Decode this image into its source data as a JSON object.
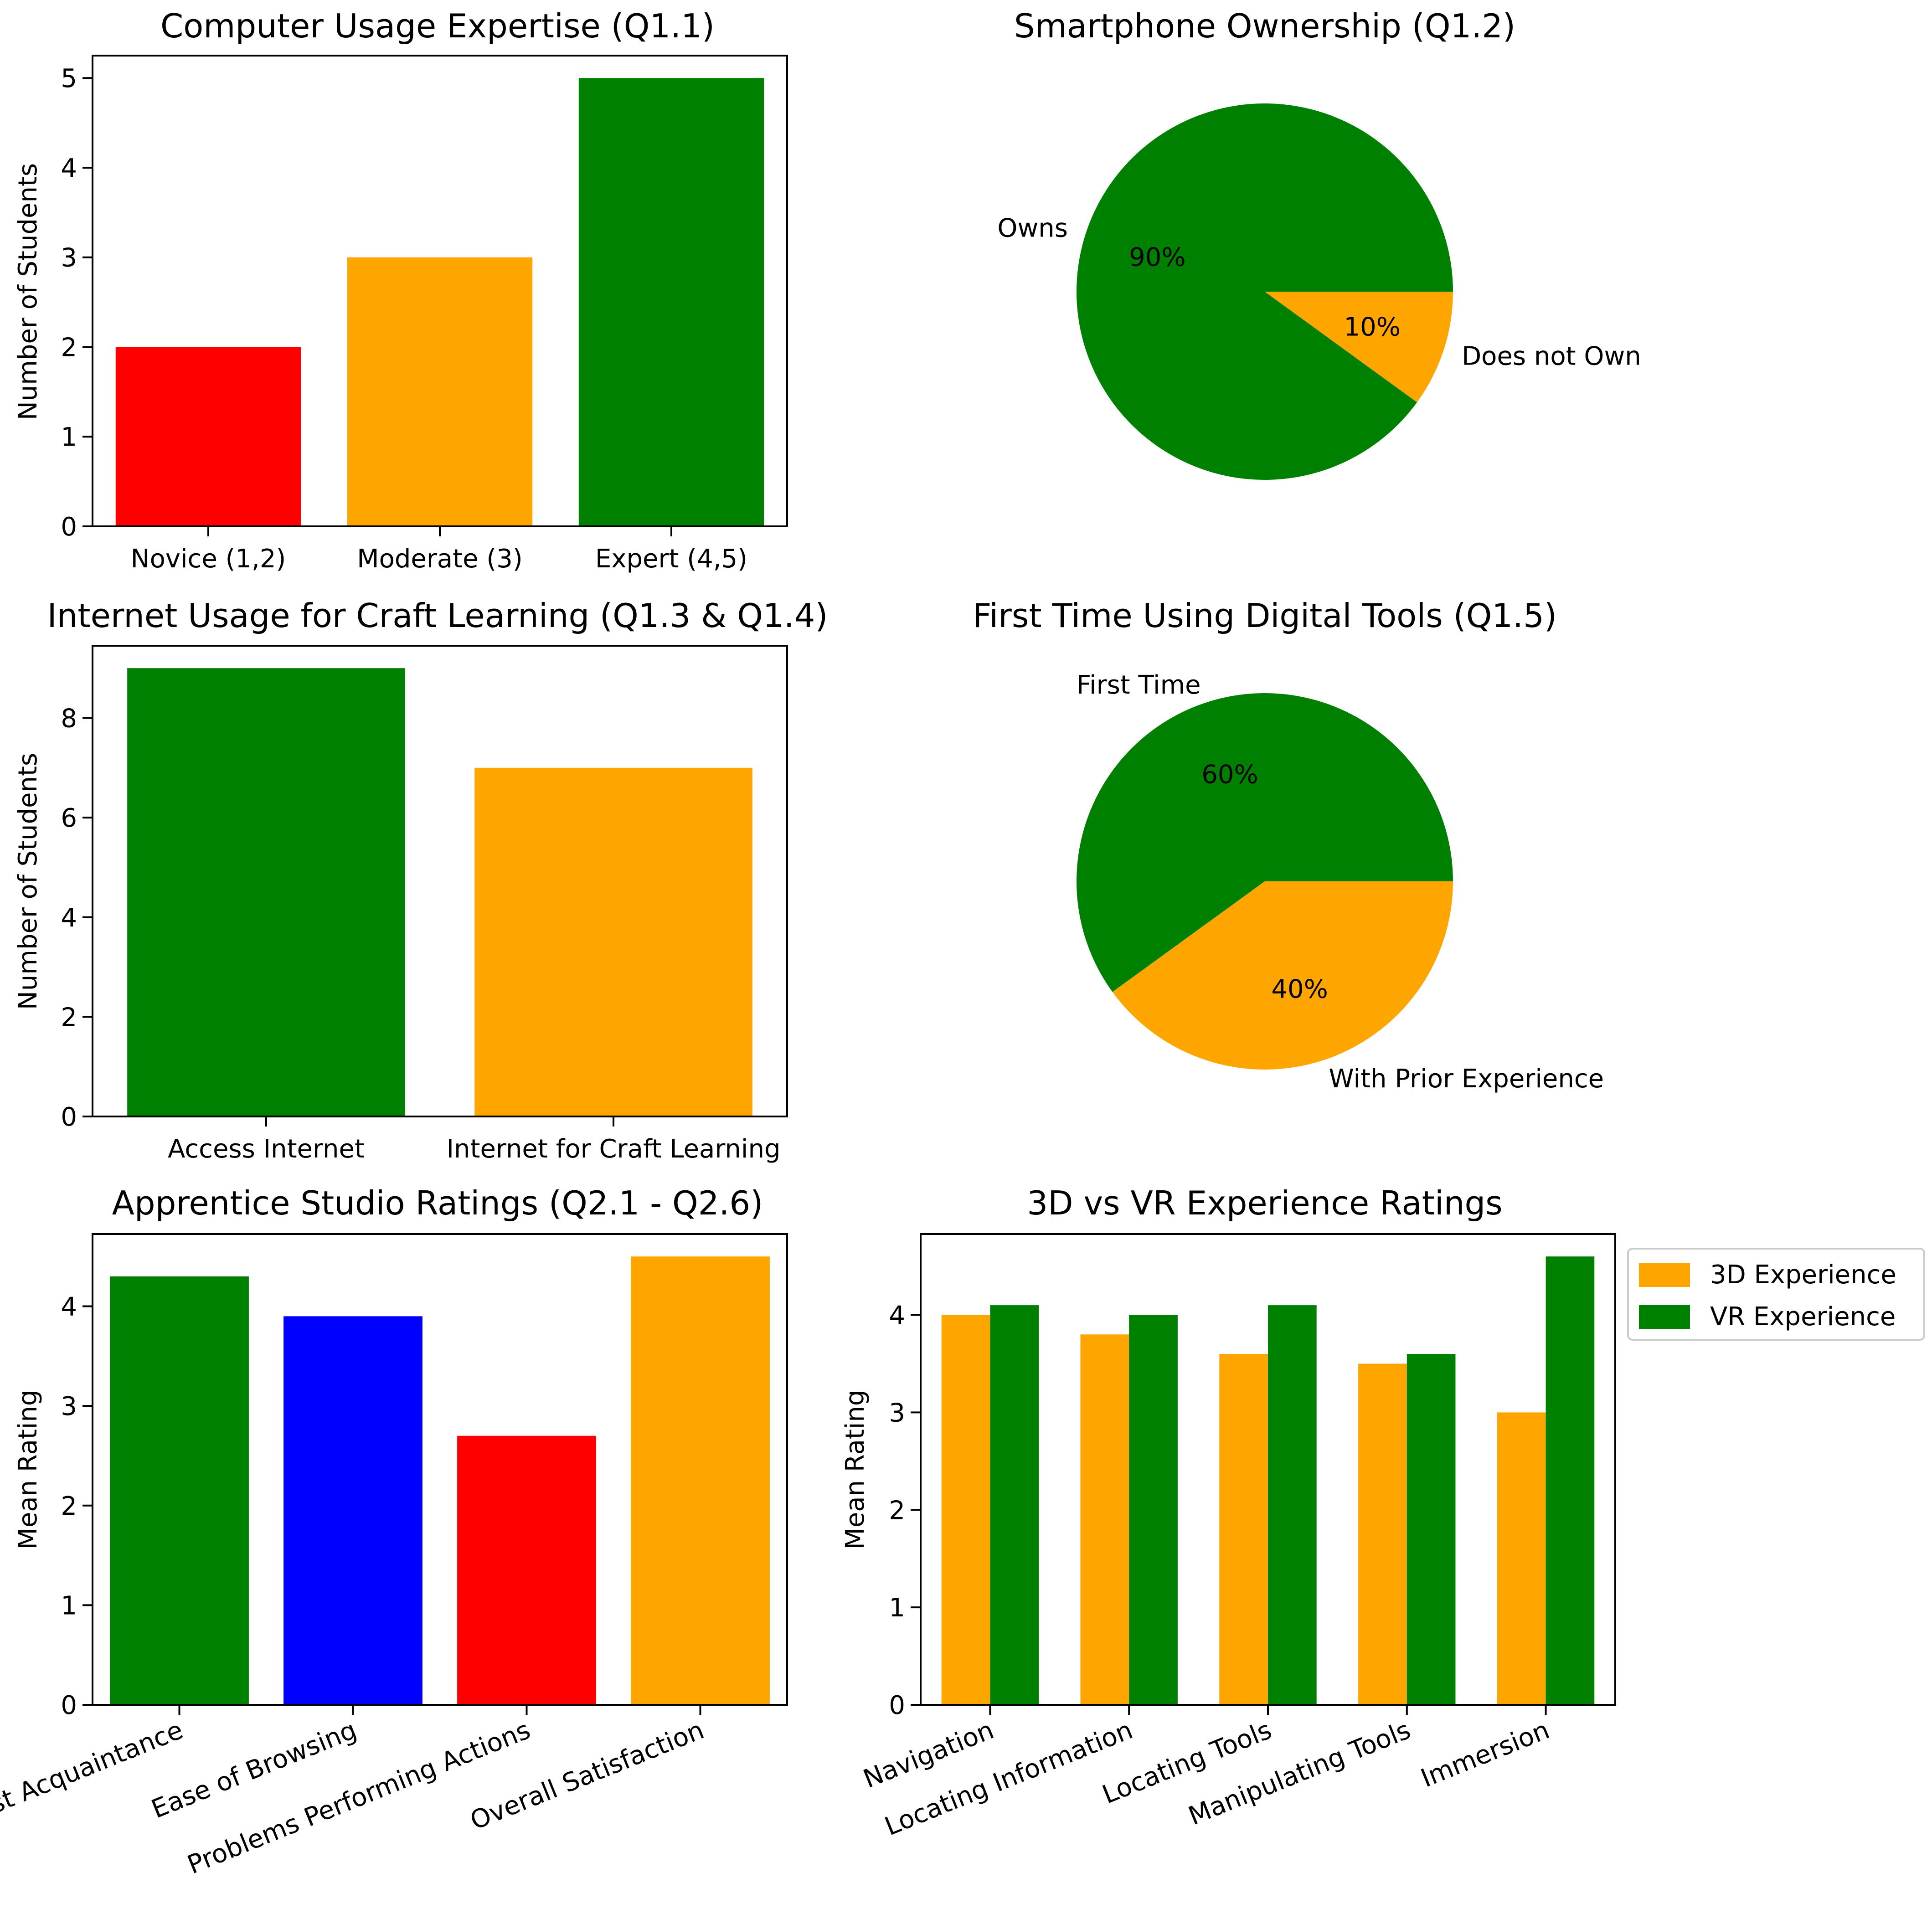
{
  "chart_data": [
    {
      "id": "c1",
      "type": "bar",
      "title": "Computer Usage Expertise (Q1.1)",
      "categories": [
        "Novice (1,2)",
        "Moderate (3)",
        "Expert (4,5)"
      ],
      "values": [
        2,
        3,
        5
      ],
      "colors": [
        "#ff0000",
        "#ffa500",
        "#008000"
      ],
      "ylabel": "Number of Students",
      "yticks": [
        0,
        1,
        2,
        3,
        4,
        5
      ],
      "ylim": [
        0,
        5.25
      ]
    },
    {
      "id": "c2",
      "type": "pie",
      "title": "Smartphone Ownership (Q1.2)",
      "labels": [
        "Owns",
        "Does not Own"
      ],
      "values": [
        90,
        10
      ],
      "percent_labels": [
        "90%",
        "10%"
      ],
      "colors": [
        "#008000",
        "#ffa500"
      ]
    },
    {
      "id": "c3",
      "type": "bar",
      "title": "Internet Usage for Craft Learning (Q1.3 & Q1.4)",
      "categories": [
        "Access Internet",
        "Internet for Craft Learning"
      ],
      "values": [
        9,
        7
      ],
      "colors": [
        "#008000",
        "#ffa500"
      ],
      "ylabel": "Number of Students",
      "yticks": [
        0,
        2,
        4,
        6,
        8
      ],
      "ylim": [
        0,
        9.45
      ]
    },
    {
      "id": "c4",
      "type": "pie",
      "title": "First Time Using Digital Tools (Q1.5)",
      "labels": [
        "First Time",
        "With Prior Experience"
      ],
      "values": [
        60,
        40
      ],
      "percent_labels": [
        "60%",
        "40%"
      ],
      "colors": [
        "#008000",
        "#ffa500"
      ]
    },
    {
      "id": "c5",
      "type": "bar",
      "title": "Apprentice Studio Ratings (Q2.1 - Q2.6)",
      "categories": [
        "First Acquaintance",
        "Ease of Browsing",
        "Problems Performing Actions",
        "Overall Satisfaction"
      ],
      "values": [
        4.3,
        3.9,
        2.7,
        4.5
      ],
      "colors": [
        "#008000",
        "#0000ff",
        "#ff0000",
        "#ffa500"
      ],
      "ylabel": "Mean Rating",
      "yticks": [
        0,
        1,
        2,
        3,
        4
      ],
      "ylim": [
        0,
        4.725
      ]
    },
    {
      "id": "c6",
      "type": "bar",
      "title": "3D vs VR Experience Ratings",
      "categories": [
        "Navigation",
        "Locating Information",
        "Locating Tools",
        "Manipulating Tools",
        "Immersion"
      ],
      "series": [
        {
          "name": "3D Experience",
          "values": [
            4.0,
            3.8,
            3.6,
            3.5,
            3.0
          ],
          "color": "#ffa500"
        },
        {
          "name": "VR Experience",
          "values": [
            4.1,
            4.0,
            4.1,
            3.6,
            4.6
          ],
          "color": "#008000"
        }
      ],
      "ylabel": "Mean Rating",
      "yticks": [
        0,
        1,
        2,
        3,
        4
      ],
      "ylim": [
        0,
        4.83
      ],
      "legend": "outside-right"
    }
  ]
}
